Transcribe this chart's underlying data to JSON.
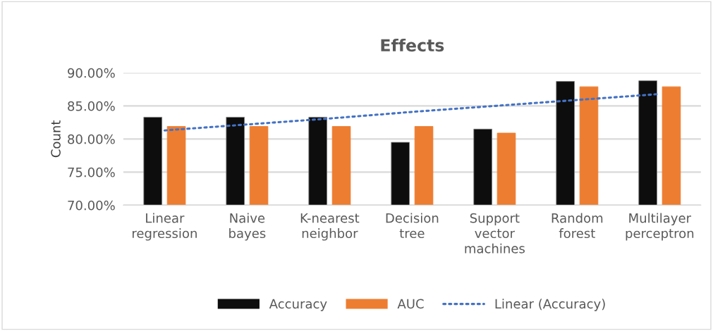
{
  "chart_data": {
    "type": "bar",
    "title": "Effects",
    "ylabel": "Count",
    "categories": [
      "Linear\nregression",
      "Naive\nbayes",
      "K-nearest\nneighbor",
      "Decision\ntree",
      "Support\nvector\nmachines",
      "Random\nforest",
      "Multilayer\nperceptron"
    ],
    "series": [
      {
        "name": "Accuracy",
        "color": "#0d0d0d",
        "values": [
          83.3,
          83.3,
          83.3,
          79.5,
          81.5,
          88.7,
          88.8
        ]
      },
      {
        "name": "AUC",
        "color": "#ed7d31",
        "values": [
          81.9,
          81.9,
          81.9,
          81.9,
          80.9,
          87.9,
          87.9
        ]
      },
      {
        "name": "Linear (Accuracy)",
        "type": "line",
        "color": "#4472c4",
        "line_style": "dotted",
        "marker": "none",
        "values": [
          81.3,
          82.2,
          83.1,
          84.1,
          85.0,
          85.9,
          86.8
        ]
      }
    ],
    "ylim": [
      70,
      90
    ],
    "yticks": [
      {
        "value": 70,
        "label": "70.00%"
      },
      {
        "value": 75,
        "label": "75.00%"
      },
      {
        "value": 80,
        "label": "80.00%"
      },
      {
        "value": 85,
        "label": "85.00%"
      },
      {
        "value": 90,
        "label": "90.00%"
      }
    ],
    "grid": "y",
    "legend": "bottom"
  }
}
